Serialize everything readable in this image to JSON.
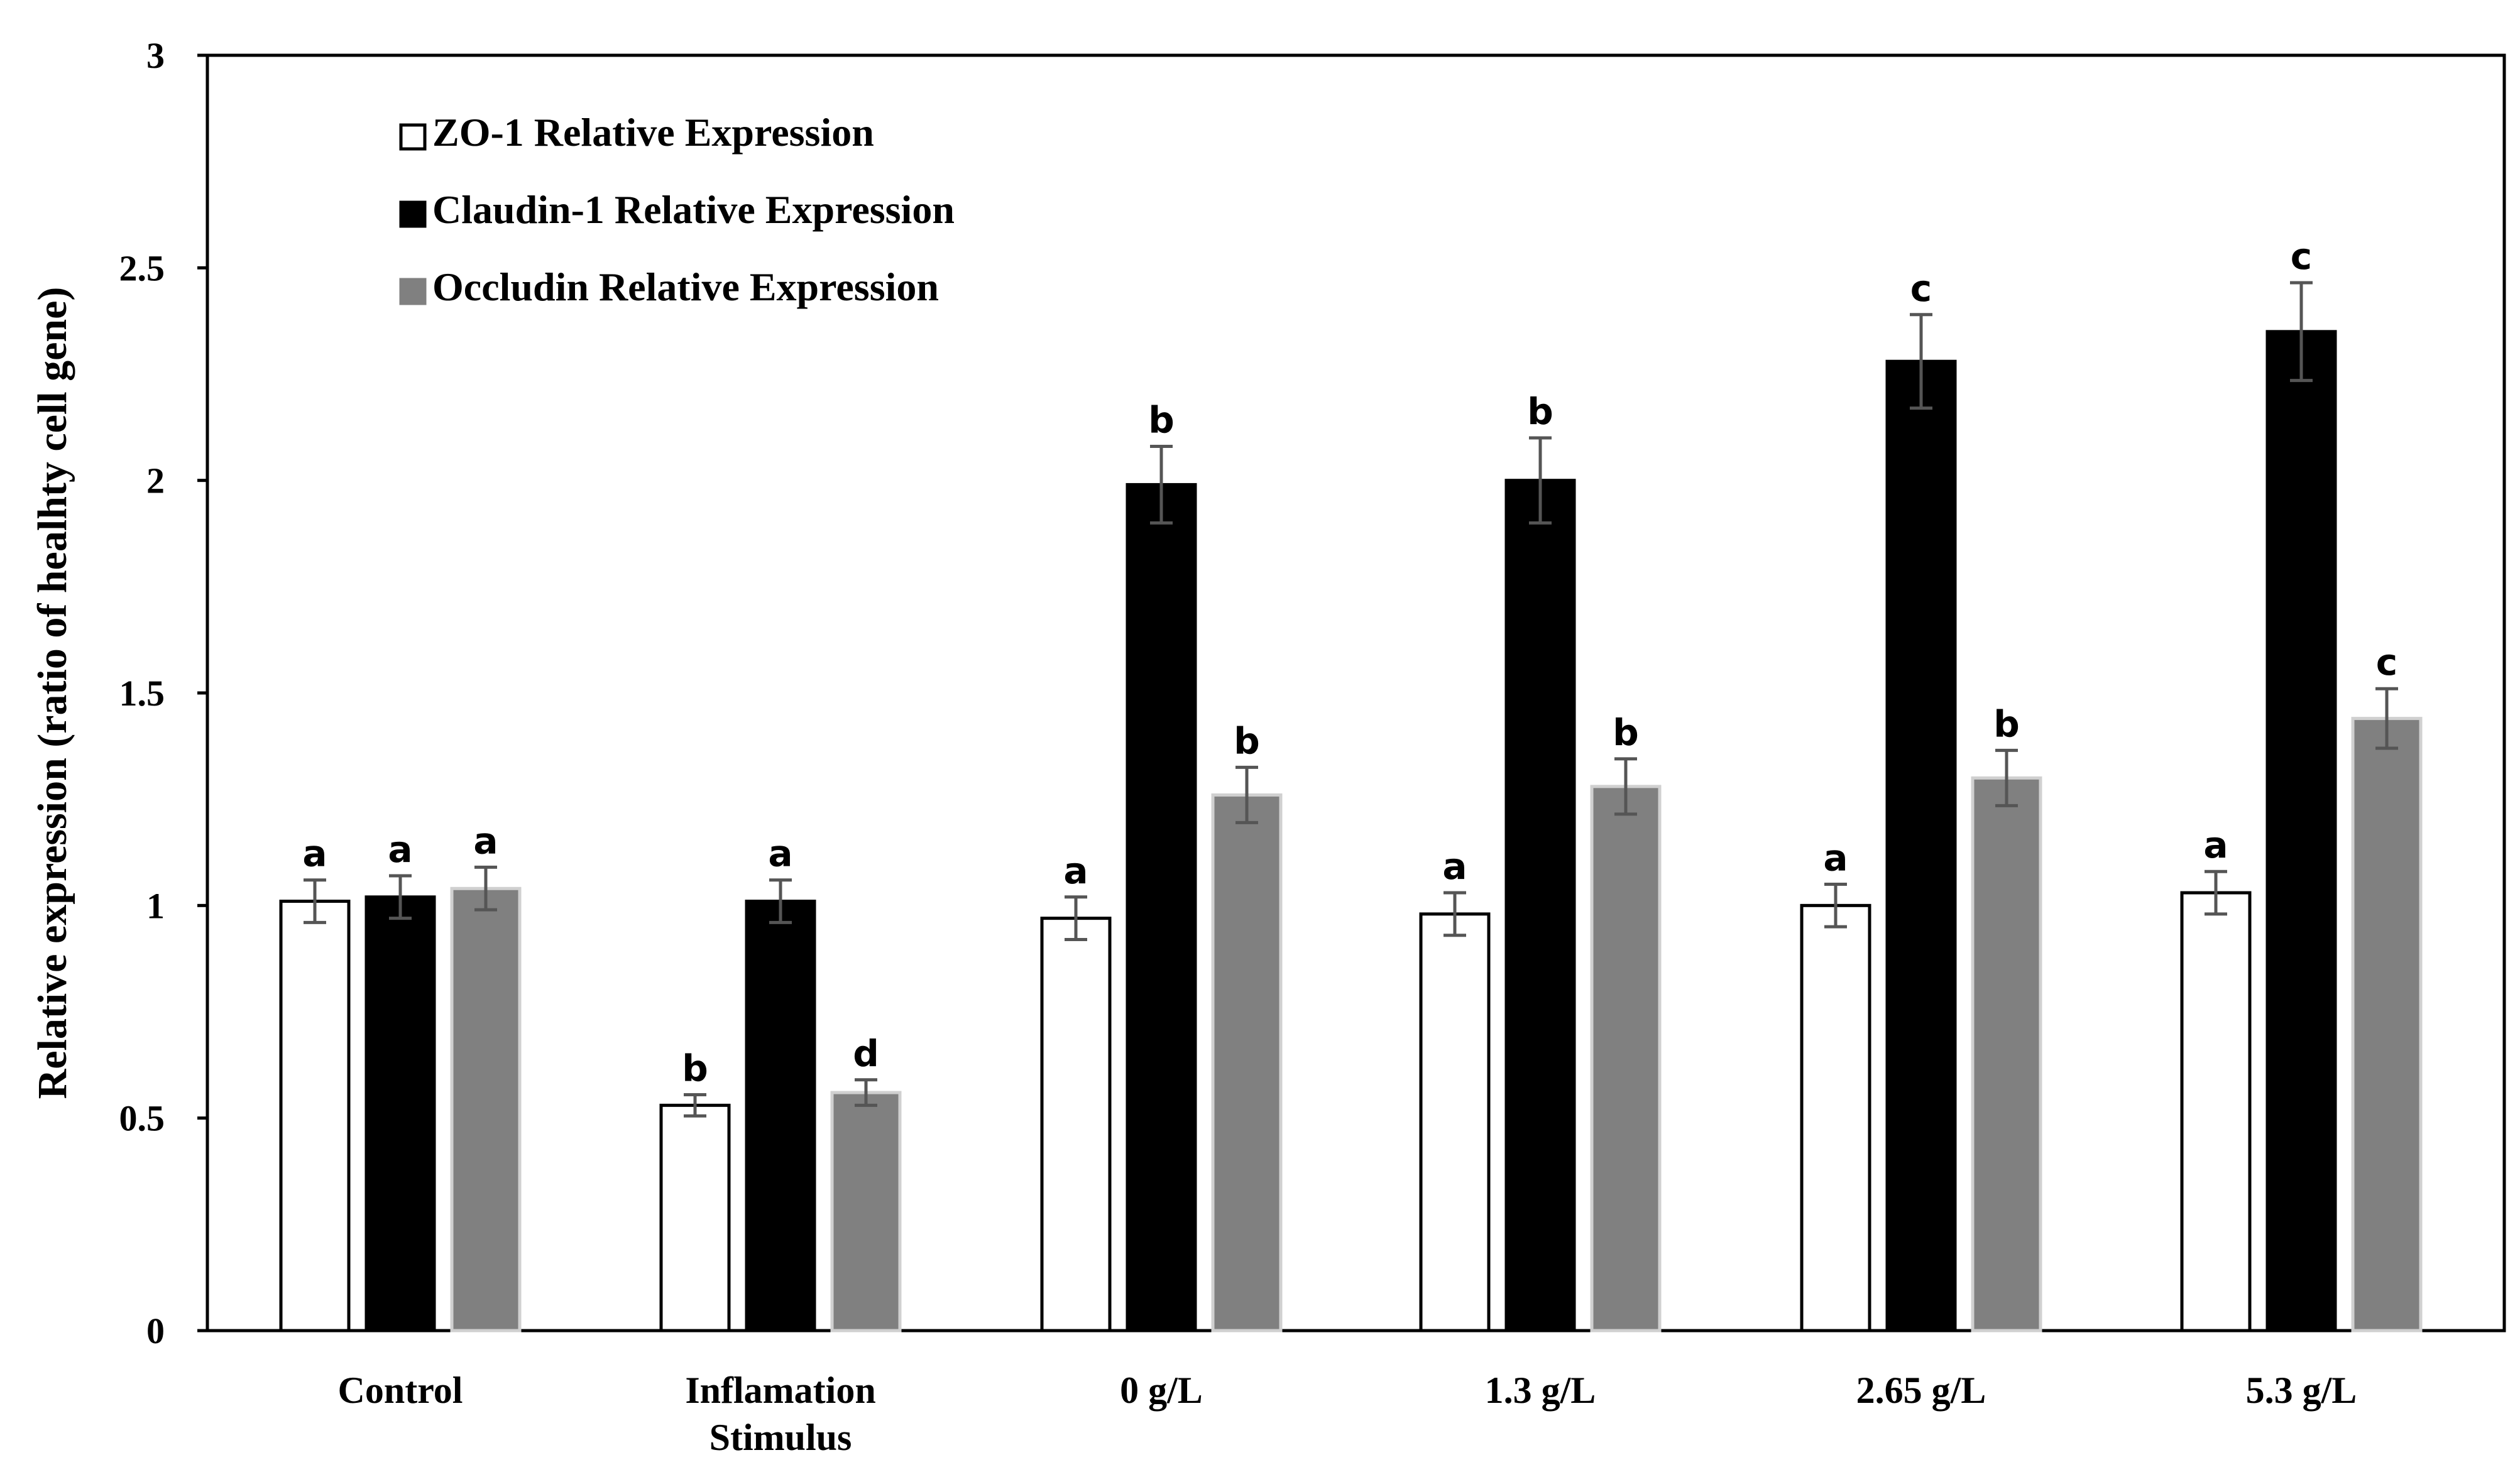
{
  "chart_data": {
    "type": "bar",
    "title": "",
    "xlabel": "",
    "ylabel": "Relative expression (ratio of healhty cell gene)",
    "ylim": [
      0,
      3
    ],
    "yticks": [
      "0",
      "0.5",
      "1",
      "1.5",
      "2",
      "2.5",
      "3"
    ],
    "grid": false,
    "legend_position": "top-left",
    "categories": [
      [
        "Control"
      ],
      [
        "Inflamation",
        "Stimulus"
      ],
      [
        "0 g/L"
      ],
      [
        "1.3 g/L"
      ],
      [
        "2.65 g/L"
      ],
      [
        "5.3 g/L"
      ]
    ],
    "series": [
      {
        "name": "ZO-1 Relative Expression",
        "fill": "#ffffff",
        "stroke": "#000000",
        "values": [
          1.01,
          0.53,
          0.97,
          0.98,
          1.0,
          1.03
        ],
        "errors": [
          0.05,
          0.025,
          0.05,
          0.05,
          0.05,
          0.05
        ],
        "sig": [
          "a",
          "b",
          "a",
          "a",
          "a",
          "a"
        ]
      },
      {
        "name": "Claudin-1 Relative Expression",
        "fill": "#000000",
        "stroke": "#000000",
        "values": [
          1.02,
          1.01,
          1.99,
          2.0,
          2.28,
          2.35
        ],
        "errors": [
          0.05,
          0.05,
          0.09,
          0.1,
          0.11,
          0.115
        ],
        "sig": [
          "a",
          "a",
          "b",
          "b",
          "c",
          "c"
        ]
      },
      {
        "name": "Occludin Relative Expression",
        "fill": "#808080",
        "stroke": "#d0d0d0",
        "values": [
          1.04,
          0.56,
          1.26,
          1.28,
          1.3,
          1.44
        ],
        "errors": [
          0.05,
          0.03,
          0.065,
          0.065,
          0.065,
          0.07
        ],
        "sig": [
          "a",
          "d",
          "b",
          "b",
          "b",
          "c"
        ]
      }
    ]
  }
}
